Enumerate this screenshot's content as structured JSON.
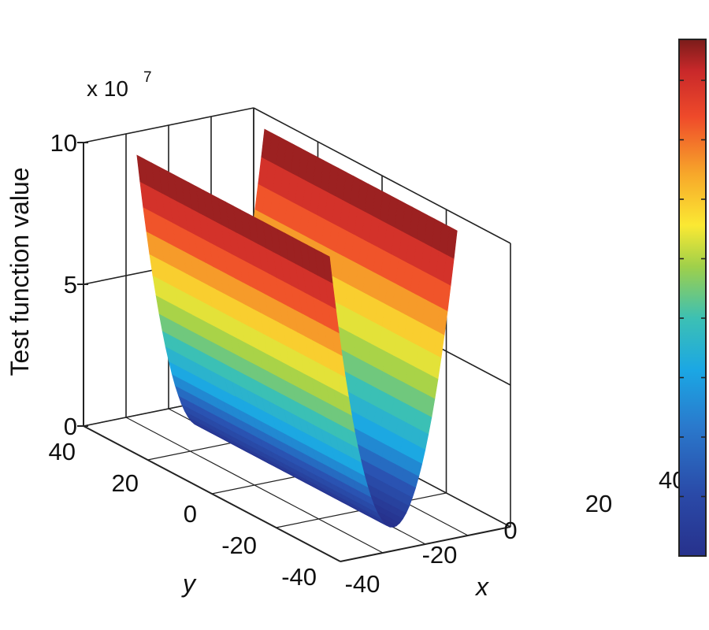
{
  "chart_data": {
    "type": "surface",
    "title": "",
    "xlabel": "x",
    "ylabel": "y",
    "zlabel": "Test function value",
    "z_multiplier": {
      "base": "x 10",
      "exponent": "7"
    },
    "xlim": [
      -40,
      40
    ],
    "ylim": [
      -40,
      40
    ],
    "zlim": [
      0,
      100000000
    ],
    "x_ticks": [
      "-40",
      "-20",
      "0",
      "20",
      "40"
    ],
    "y_ticks": [
      "40",
      "20",
      "0",
      "-20",
      "-40"
    ],
    "z_ticks": [
      "0",
      "5",
      "10"
    ],
    "grid": true,
    "colorbar": true,
    "colormap": [
      "#27318c",
      "#2a55b4",
      "#1ba7e4",
      "#3cc0b4",
      "#9fd04a",
      "#fbe933",
      "#f7a72a",
      "#ef4a2a",
      "#c8282a",
      "#7a1c1a"
    ],
    "surface": {
      "function": "z depends on x only (quadratic bowl along x)",
      "x_range": [
        -30,
        30
      ],
      "y_range": [
        -30,
        30
      ],
      "z_min": 0,
      "z_max": 100000000
    }
  }
}
